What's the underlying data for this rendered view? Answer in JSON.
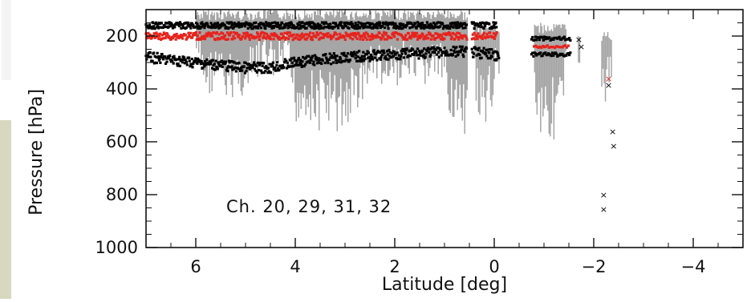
{
  "chart_data": {
    "type": "scatter",
    "title": "",
    "xlabel": "Latitude [deg]",
    "ylabel": "Pressure [hPa]",
    "annotation": "Ch. 20, 29, 31, 32",
    "xlim": [
      7,
      -5
    ],
    "ylim": [
      1000,
      100
    ],
    "x_ticks": [
      6,
      4,
      2,
      0,
      -2,
      -4
    ],
    "x_tick_labels": [
      "6",
      "4",
      "2",
      "0",
      "−2",
      "−4"
    ],
    "y_ticks": [
      200,
      400,
      600,
      800,
      1000
    ],
    "y_tick_labels": [
      "200",
      "400",
      "600",
      "800",
      "1000"
    ],
    "grid": false,
    "colors": {
      "spread": "#a6a6a6",
      "black_points": "#000000",
      "red_points": "#e8231c"
    },
    "series": [
      {
        "style": "gray-spread",
        "segments": [
          {
            "x": [
              6.0,
              0.55
            ],
            "top": 100,
            "bottom_profile": [
              [
                6.0,
                300
              ],
              [
                5.8,
                420
              ],
              [
                5.6,
                380
              ],
              [
                5.4,
                450
              ],
              [
                5.2,
                400
              ],
              [
                5.0,
                430
              ],
              [
                4.8,
                360
              ],
              [
                4.6,
                320
              ],
              [
                4.4,
                380
              ],
              [
                4.2,
                300
              ],
              [
                4.0,
                520
              ],
              [
                3.8,
                480
              ],
              [
                3.6,
                560
              ],
              [
                3.4,
                500
              ],
              [
                3.2,
                560
              ],
              [
                3.0,
                540
              ],
              [
                2.8,
                480
              ],
              [
                2.6,
                400
              ],
              [
                2.4,
                350
              ],
              [
                2.2,
                420
              ],
              [
                2.0,
                380
              ],
              [
                1.8,
                350
              ],
              [
                1.6,
                420
              ],
              [
                1.4,
                380
              ],
              [
                1.2,
                350
              ],
              [
                1.0,
                400
              ],
              [
                0.9,
                480
              ],
              [
                0.8,
                520
              ],
              [
                0.7,
                600
              ],
              [
                0.6,
                650
              ],
              [
                0.55,
                560
              ]
            ]
          },
          {
            "x": [
              0.4,
              -0.1
            ],
            "top": 150,
            "bottom_profile": [
              [
                0.4,
                420
              ],
              [
                0.3,
                560
              ],
              [
                0.2,
                620
              ],
              [
                0.1,
                500
              ],
              [
                0.0,
                380
              ],
              [
                -0.1,
                320
              ]
            ]
          },
          {
            "x": [
              -0.8,
              -1.45
            ],
            "top": 150,
            "bottom_profile": [
              [
                -0.8,
                480
              ],
              [
                -0.9,
                560
              ],
              [
                -1.0,
                500
              ],
              [
                -1.1,
                600
              ],
              [
                -1.2,
                560
              ],
              [
                -1.3,
                540
              ],
              [
                -1.4,
                450
              ],
              [
                -1.45,
                360
              ]
            ]
          },
          {
            "x": [
              -1.68,
              -1.72
            ],
            "top": 180,
            "bottom_profile": [
              [
                -1.68,
                590
              ],
              [
                -1.72,
                400
              ]
            ]
          },
          {
            "x": [
              -2.15,
              -2.35
            ],
            "top": 180,
            "bottom_profile": [
              [
                -2.15,
                400
              ],
              [
                -2.25,
                460
              ],
              [
                -2.35,
                380
              ]
            ]
          }
        ]
      },
      {
        "style": "black-upper",
        "x_range": [
          7.0,
          -0.05
        ],
        "pressure_center": 160,
        "jitter": 12,
        "extra": {
          "x": [
            -0.75,
            -1.55
          ],
          "pressure": 210
        }
      },
      {
        "style": "black-lower",
        "x_range": [
          7.0,
          -0.1
        ],
        "pressure_profile": [
          [
            7.0,
            280
          ],
          [
            6.5,
            290
          ],
          [
            6.0,
            300
          ],
          [
            5.5,
            310
          ],
          [
            5.0,
            320
          ],
          [
            4.5,
            320
          ],
          [
            4.0,
            300
          ],
          [
            3.5,
            290
          ],
          [
            3.0,
            280
          ],
          [
            2.5,
            275
          ],
          [
            2.0,
            270
          ],
          [
            1.5,
            265
          ],
          [
            1.0,
            260
          ],
          [
            0.5,
            260
          ],
          [
            0.0,
            270
          ],
          [
            -0.1,
            280
          ]
        ],
        "jitter": 20,
        "extra": {
          "x": [
            -0.75,
            -1.55
          ],
          "pressure": 270
        }
      },
      {
        "style": "red",
        "x_range": [
          7.0,
          -0.05
        ],
        "pressure_center": 200,
        "jitter": 14,
        "extra": {
          "x": [
            -0.8,
            -1.5
          ],
          "pressure": 240
        }
      },
      {
        "style": "isolated",
        "points": [
          {
            "x": -1.7,
            "y": 212,
            "color": "black"
          },
          {
            "x": -1.75,
            "y": 240,
            "color": "black"
          },
          {
            "x": -2.3,
            "y": 360,
            "color": "red"
          },
          {
            "x": -2.3,
            "y": 385,
            "color": "black"
          },
          {
            "x": -2.38,
            "y": 560,
            "color": "black"
          },
          {
            "x": -2.4,
            "y": 615,
            "color": "black"
          },
          {
            "x": -2.2,
            "y": 800,
            "color": "black"
          },
          {
            "x": -2.2,
            "y": 855,
            "color": "black"
          }
        ]
      }
    ]
  }
}
